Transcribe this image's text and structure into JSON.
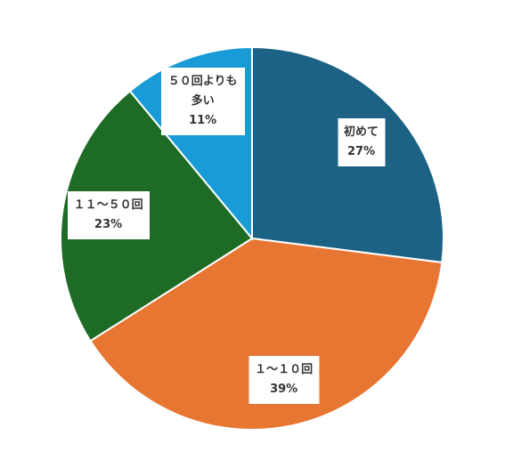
{
  "chart_data": {
    "type": "pie",
    "categories": [
      "初めて",
      "１～１０回",
      "１１～５０回",
      "５０回よりも多い"
    ],
    "values": [
      27,
      39,
      23,
      11
    ],
    "value_labels": [
      "27%",
      "39%",
      "23%",
      "11%"
    ],
    "colors": [
      "#1b6285",
      "#e87633",
      "#1e6b26",
      "#189bd6"
    ]
  }
}
